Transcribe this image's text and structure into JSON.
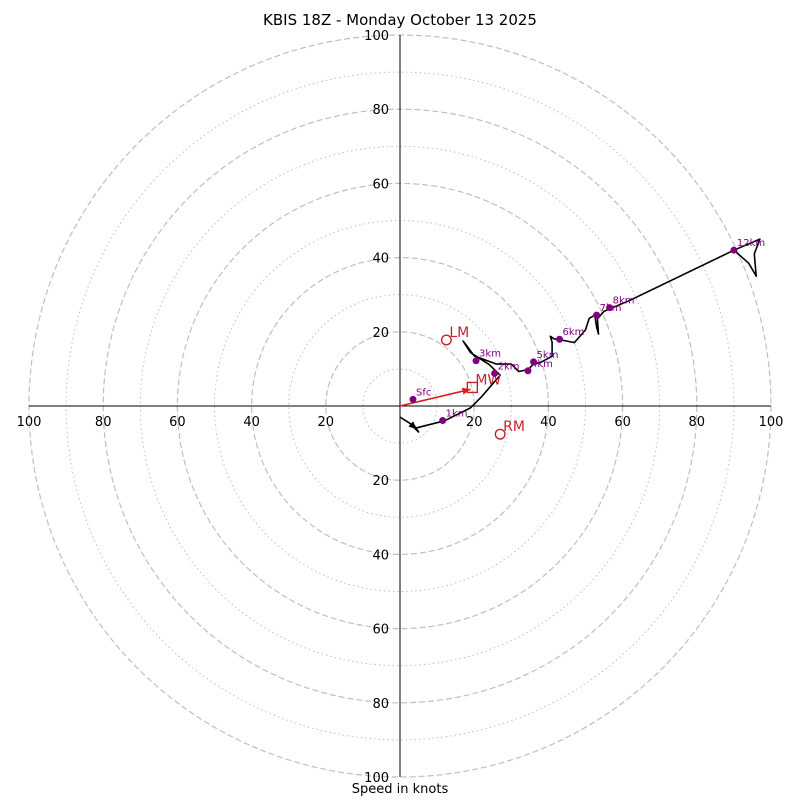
{
  "chart_data": {
    "type": "hodograph",
    "title": "KBIS 18Z - Monday October 13 2025",
    "xlabel": "Speed in knots",
    "range": 100,
    "major_rings": [
      20,
      40,
      60,
      80,
      100
    ],
    "minor_rings": [
      10,
      30,
      50,
      70,
      90
    ],
    "ticks": {
      "x_left": [
        "100",
        "80",
        "60",
        "40",
        "20"
      ],
      "x_right": [
        "20",
        "40",
        "60",
        "80",
        "100"
      ],
      "y_top": [
        "20",
        "40",
        "60",
        "80",
        "100"
      ],
      "y_bottom": [
        "20",
        "40",
        "60",
        "80",
        "100"
      ],
      "x_left_values": [
        -100,
        -80,
        -60,
        -40,
        -20
      ],
      "x_right_values": [
        20,
        40,
        60,
        80,
        100
      ],
      "y_top_values": [
        20,
        40,
        60,
        80,
        100
      ],
      "y_bottom_values": [
        -20,
        -40,
        -60,
        -80,
        -100
      ]
    },
    "trace": [
      [
        0,
        -3
      ],
      [
        4,
        -5.5
      ],
      [
        5,
        -7
      ],
      [
        4,
        -6
      ],
      [
        12,
        -4
      ],
      [
        19,
        -0.5
      ],
      [
        22,
        2.5
      ],
      [
        25,
        6
      ],
      [
        27,
        8.3
      ],
      [
        24,
        11.2
      ],
      [
        19,
        14.4
      ],
      [
        17,
        17.5
      ],
      [
        18,
        16.2
      ],
      [
        20,
        13.5
      ],
      [
        26,
        11.3
      ],
      [
        30,
        11.3
      ],
      [
        32,
        9.3
      ],
      [
        34.5,
        9.8
      ],
      [
        36,
        11.3
      ],
      [
        38,
        11.8
      ],
      [
        41,
        13.4
      ],
      [
        41,
        17.2
      ],
      [
        40.5,
        18.8
      ],
      [
        41.5,
        18.1
      ],
      [
        43.5,
        17.8
      ],
      [
        47,
        17.1
      ],
      [
        50,
        20.5
      ],
      [
        51,
        23.6
      ],
      [
        52.5,
        24.5
      ],
      [
        53,
        21.3
      ],
      [
        53.5,
        19.4
      ],
      [
        53.2,
        23.5
      ],
      [
        55,
        25.5
      ],
      [
        57,
        26.4
      ],
      [
        62,
        28.5
      ],
      [
        90,
        42
      ],
      [
        94,
        38.5
      ],
      [
        96,
        35
      ],
      [
        95.5,
        41
      ],
      [
        97,
        45
      ],
      [
        90,
        42
      ]
    ],
    "trace_arrow_from": [
      2,
      -4
    ],
    "trace_arrow_to": [
      4.5,
      -6.3
    ],
    "height_markers": [
      {
        "label": "Sfc",
        "u": 3.5,
        "v": 1.8
      },
      {
        "label": "1km",
        "u": 11.5,
        "v": -3.9
      },
      {
        "label": "2km",
        "u": 25.5,
        "v": 8.8
      },
      {
        "label": "3km",
        "u": 20.5,
        "v": 12.2
      },
      {
        "label": "4km",
        "u": 34.5,
        "v": 9.5
      },
      {
        "label": "5km",
        "u": 36,
        "v": 11.9
      },
      {
        "label": "6km",
        "u": 43,
        "v": 18
      },
      {
        "label": "7km",
        "u": 53,
        "v": 24.5
      },
      {
        "label": "8km",
        "u": 56.5,
        "v": 26.5
      },
      {
        "label": "12km",
        "u": 90,
        "v": 42
      }
    ],
    "storm_markers": [
      {
        "label": "LM",
        "u": 12.5,
        "v": 17.8,
        "shape": "circle"
      },
      {
        "label": "RM",
        "u": 27,
        "v": -7.6,
        "shape": "circle"
      },
      {
        "label": "MW",
        "u": 19.5,
        "v": 5,
        "shape": "square"
      }
    ],
    "storm_motion_vector": {
      "from": [
        0,
        0
      ],
      "to": [
        19,
        4.5
      ]
    },
    "colors": {
      "trace": "#000000",
      "height_marker": "#800080",
      "storm_marker": "#c0262b",
      "vector": "#e31a1c",
      "grid": "#bfbfbf"
    }
  }
}
